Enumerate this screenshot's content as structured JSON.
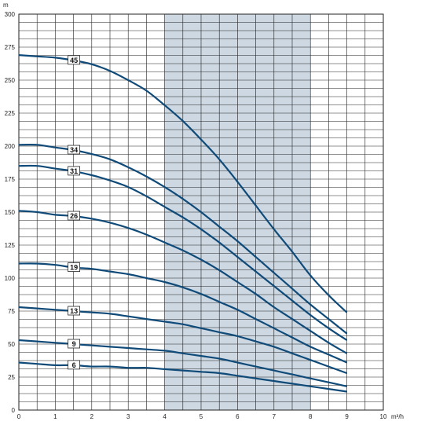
{
  "chart_data": {
    "type": "line",
    "title": "",
    "xlabel": "",
    "ylabel": "",
    "x_unit": "m³/h",
    "y_unit": "m",
    "xlim": [
      0,
      10
    ],
    "ylim": [
      0,
      300
    ],
    "x_ticks": [
      0,
      1,
      2,
      3,
      4,
      5,
      6,
      7,
      8,
      9,
      10
    ],
    "y_ticks": [
      0,
      25,
      50,
      75,
      100,
      125,
      150,
      175,
      200,
      225,
      250,
      275,
      300
    ],
    "grid": true,
    "shaded_region": [
      4,
      8
    ],
    "colors": {
      "curve": "#0f4a78",
      "shade": "#cdd8e3",
      "grid": "#222222"
    },
    "label_x": 1.5,
    "x": [
      0,
      0.5,
      1,
      1.5,
      2,
      2.5,
      3,
      3.5,
      4,
      4.5,
      5,
      5.5,
      6,
      6.5,
      7,
      7.5,
      8,
      8.5,
      9
    ],
    "series": [
      {
        "name": "45",
        "values": [
          269,
          268,
          267,
          265,
          262,
          257,
          250,
          242,
          231,
          219,
          205,
          190,
          173,
          155,
          137,
          120,
          102,
          87,
          74
        ]
      },
      {
        "name": "34",
        "values": [
          201,
          201,
          199,
          197,
          194,
          190,
          184,
          177,
          169,
          160,
          150,
          139,
          128,
          116,
          104,
          92,
          80,
          69,
          58
        ]
      },
      {
        "name": "31",
        "values": [
          185,
          185,
          183,
          181,
          178,
          174,
          169,
          162,
          154,
          146,
          137,
          127,
          116,
          105,
          94,
          83,
          72,
          62,
          53
        ]
      },
      {
        "name": "26",
        "values": [
          151,
          150,
          148,
          147,
          145,
          142,
          138,
          133,
          127,
          121,
          114,
          106,
          97,
          88,
          78,
          69,
          60,
          51,
          43
        ]
      },
      {
        "name": "19",
        "values": [
          111,
          111,
          110,
          108,
          107,
          105,
          103,
          100,
          97,
          93,
          88,
          82,
          76,
          69,
          62,
          55,
          48,
          42,
          36
        ]
      },
      {
        "name": "13",
        "values": [
          78,
          77,
          76,
          75,
          74,
          73,
          71,
          69,
          67,
          65,
          62,
          59,
          56,
          52,
          48,
          43,
          38,
          33,
          28
        ]
      },
      {
        "name": "9",
        "values": [
          53,
          52,
          51,
          50,
          49,
          48,
          47,
          46,
          45,
          43,
          41,
          39,
          36,
          33,
          30,
          27,
          24,
          21,
          18
        ]
      },
      {
        "name": "6",
        "values": [
          36,
          35,
          34,
          34,
          33,
          33,
          32,
          32,
          31,
          30,
          29,
          28,
          26,
          24,
          22,
          20,
          18,
          16,
          14
        ]
      }
    ]
  }
}
